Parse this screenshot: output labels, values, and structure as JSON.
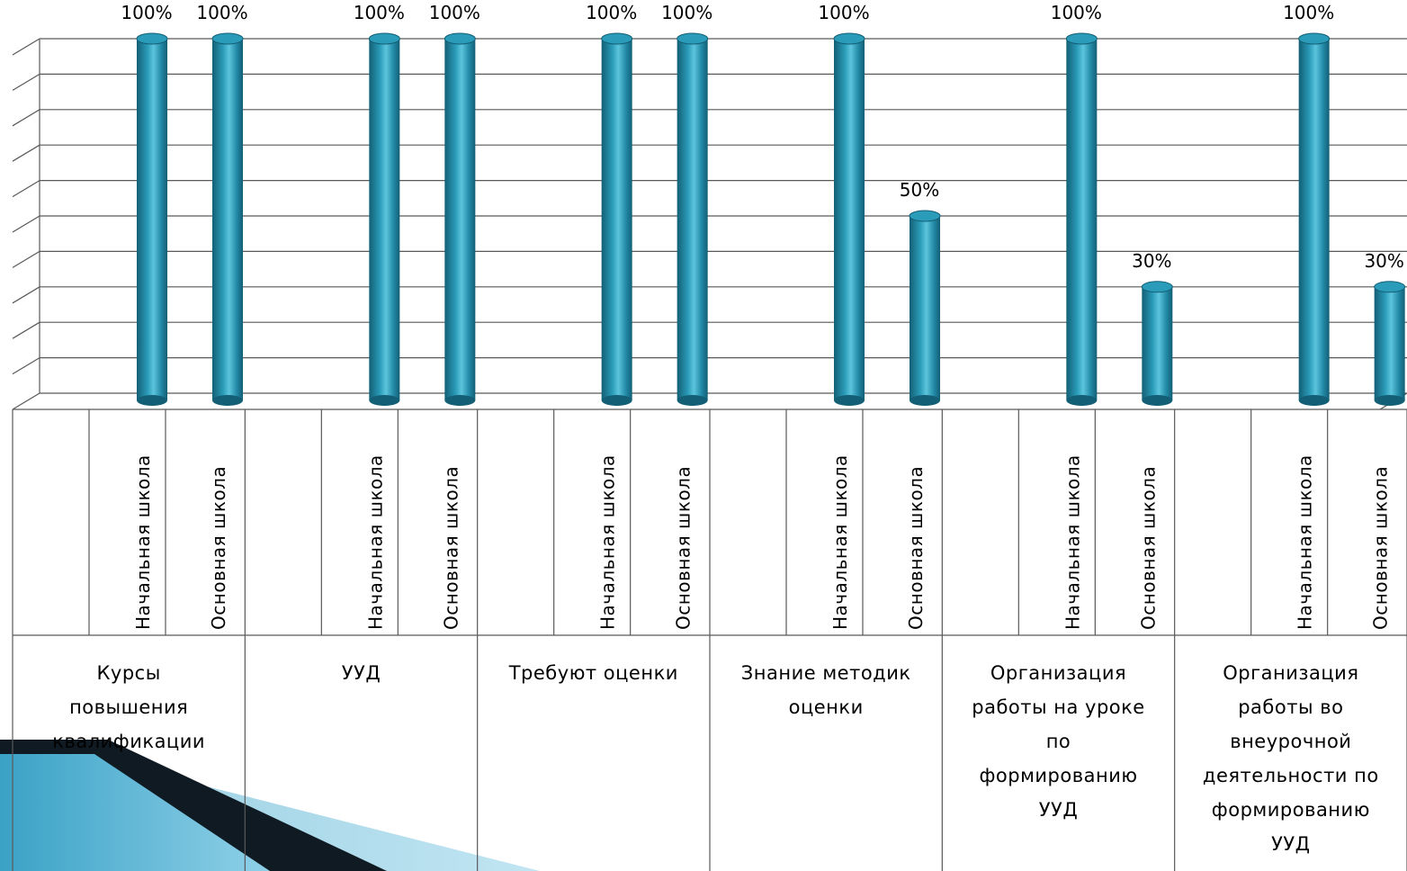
{
  "chart_data": {
    "type": "bar",
    "style": "3d-cylinder",
    "ylim": [
      0,
      100
    ],
    "grid": true,
    "colors": {
      "bar": "#2a9bb8",
      "bar_dark": "#135f75",
      "bar_light": "#5cc4dc",
      "grid": "#595959",
      "decor": "#3aa2c6"
    },
    "groups": [
      {
        "label": "Курсы повышения квалификации",
        "label_lines": [
          "Курсы",
          "повышения",
          "квалификации"
        ],
        "bars": [
          {
            "category": "Начальная школа",
            "value": 100,
            "label": "100%"
          },
          {
            "category": "Основная школа",
            "value": 100,
            "label": "100%"
          }
        ]
      },
      {
        "label": "УУД",
        "label_lines": [
          "УУД"
        ],
        "bars": [
          {
            "category": "Начальная школа",
            "value": 100,
            "label": "100%"
          },
          {
            "category": "Основная школа",
            "value": 100,
            "label": "100%"
          }
        ]
      },
      {
        "label": "Требуют оценки",
        "label_lines": [
          "Требуют оценки"
        ],
        "bars": [
          {
            "category": "Начальная школа",
            "value": 100,
            "label": "100%"
          },
          {
            "category": "Основная школа",
            "value": 100,
            "label": "100%"
          }
        ]
      },
      {
        "label": "Знание методик оценки",
        "label_lines": [
          "Знание методик",
          "оценки"
        ],
        "bars": [
          {
            "category": "Начальная школа",
            "value": 100,
            "label": "100%"
          },
          {
            "category": "Основная школа",
            "value": 50,
            "label": "50%"
          }
        ]
      },
      {
        "label": "Организация работы на уроке по формированию УУД",
        "label_lines": [
          "Организация",
          "работы на уроке",
          "по",
          "формированию",
          "УУД"
        ],
        "bars": [
          {
            "category": "Начальная школа",
            "value": 100,
            "label": "100%"
          },
          {
            "category": "Основная школа",
            "value": 30,
            "label": "30%"
          }
        ]
      },
      {
        "label": "Организация работы во внеурочной деятельности по формированию УУД",
        "label_lines": [
          "Организация",
          "работы во",
          "внеурочной",
          "деятельности по",
          "формированию",
          "УУД"
        ],
        "bars": [
          {
            "category": "Начальная школа",
            "value": 100,
            "label": "100%"
          },
          {
            "category": "Основная школа",
            "value": 30,
            "label": "30%"
          }
        ]
      }
    ]
  }
}
